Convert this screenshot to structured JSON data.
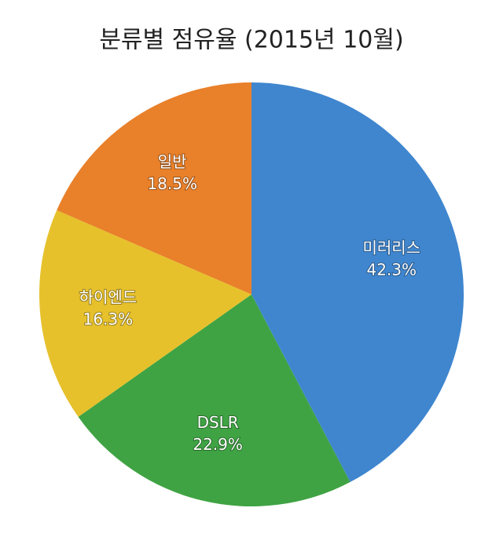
{
  "chart_data": {
    "type": "pie",
    "title": "분류별 점유율 (2015년 10월)",
    "categories": [
      "미러리스",
      "DSLR",
      "하이엔드",
      "일반"
    ],
    "values": [
      42.3,
      22.9,
      16.3,
      18.5
    ],
    "value_labels": [
      "42.3%",
      "22.9%",
      "16.3%",
      "18.5%"
    ],
    "colors": [
      "#3f86cf",
      "#3fa343",
      "#e6c12c",
      "#e9802a"
    ]
  }
}
